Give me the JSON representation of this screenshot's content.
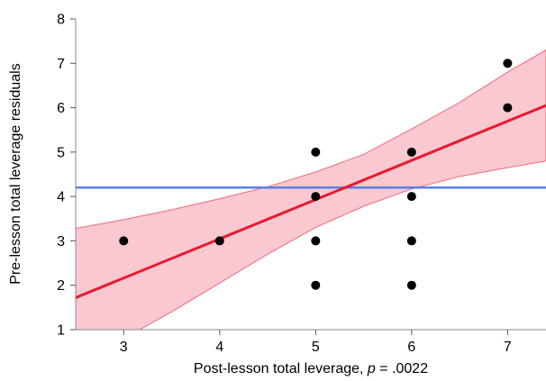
{
  "chart_data": {
    "type": "scatter",
    "xlabel_main": "Post-lesson total leverage, ",
    "xlabel_italic": "p",
    "xlabel_tail": " = .0022",
    "ylabel": "Pre-lesson total leverage residuals",
    "xlim": [
      2.5,
      7.4
    ],
    "ylim": [
      1,
      8
    ],
    "x_ticks": [
      "3",
      "4",
      "5",
      "6",
      "7"
    ],
    "y_ticks": [
      "1",
      "2",
      "3",
      "4",
      "5",
      "6",
      "7",
      "8"
    ],
    "grid": false,
    "points": [
      {
        "x": 3,
        "y": 3
      },
      {
        "x": 4,
        "y": 3
      },
      {
        "x": 5,
        "y": 5
      },
      {
        "x": 5,
        "y": 4
      },
      {
        "x": 5,
        "y": 3
      },
      {
        "x": 5,
        "y": 2
      },
      {
        "x": 6,
        "y": 5
      },
      {
        "x": 6,
        "y": 4
      },
      {
        "x": 6,
        "y": 3
      },
      {
        "x": 6,
        "y": 2
      },
      {
        "x": 7,
        "y": 7
      },
      {
        "x": 7,
        "y": 6
      }
    ],
    "mean_line": {
      "y": 4.2
    },
    "fit_line": {
      "x": [
        2.5,
        7.4
      ],
      "y": [
        1.72,
        6.05
      ]
    },
    "confidence_band": {
      "x": [
        2.5,
        3.0,
        3.5,
        4.0,
        4.5,
        5.0,
        5.5,
        6.0,
        6.5,
        7.0,
        7.4
      ],
      "upper": [
        3.28,
        3.48,
        3.7,
        3.95,
        4.22,
        4.55,
        4.95,
        5.52,
        6.12,
        6.8,
        7.3
      ],
      "lower": [
        0.2,
        0.8,
        1.4,
        2.05,
        2.7,
        3.3,
        3.78,
        4.17,
        4.45,
        4.65,
        4.8
      ]
    },
    "colors": {
      "points": "#000000",
      "fit_line": "#e8192c",
      "band_fill": "#f9c8d0",
      "band_edge": "#ee6b7b",
      "mean_line": "#5b7fe6",
      "plot_bg": "#ffffff",
      "frame": "#b0b0b0"
    }
  }
}
